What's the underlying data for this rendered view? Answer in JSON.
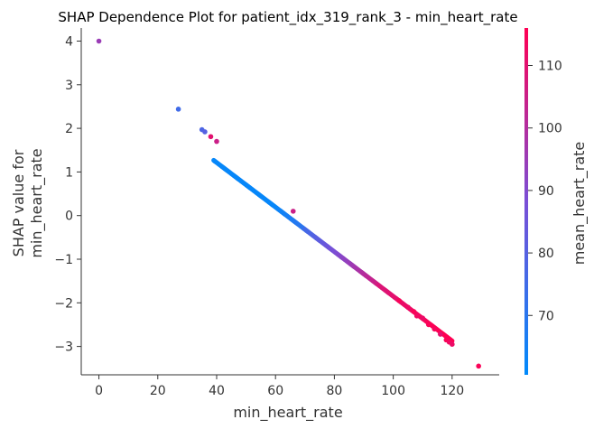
{
  "chart_data": {
    "type": "scatter",
    "title": "SHAP Dependence Plot for patient_idx_319_rank_3 - min_heart_rate",
    "xlabel": "min_heart_rate",
    "ylabel_line1": "SHAP value for",
    "ylabel_line2": "min_heart_rate",
    "xlim": [
      -6,
      136
    ],
    "ylim": [
      -3.65,
      4.3
    ],
    "xticks": [
      0,
      20,
      40,
      60,
      80,
      100,
      120
    ],
    "yticks": [
      -3,
      -2,
      -1,
      0,
      1,
      2,
      3,
      4
    ],
    "grid": false,
    "colorbar": {
      "label": "mean_heart_rate",
      "range": [
        60.5,
        116
      ],
      "ticks": [
        70,
        80,
        90,
        100,
        110
      ],
      "colors": [
        "#008afb",
        "#7a4fd6",
        "#ff0053"
      ]
    },
    "trend": {
      "slope": -0.0511,
      "intercept": 3.26,
      "x_min": 39,
      "x_max": 120
    },
    "points": [
      {
        "x": 0,
        "y": 4.0,
        "c": 95
      },
      {
        "x": 27,
        "y": 2.44,
        "c": 75
      },
      {
        "x": 35,
        "y": 1.97,
        "c": 78
      },
      {
        "x": 36,
        "y": 1.92,
        "c": 80
      },
      {
        "x": 38,
        "y": 1.81,
        "c": 110
      },
      {
        "x": 40,
        "y": 1.7,
        "c": 105
      },
      {
        "x": 66,
        "y": 0.1,
        "c": 105
      },
      {
        "x": 102,
        "y": -1.95,
        "c": 115
      },
      {
        "x": 105,
        "y": -2.1,
        "c": 112
      },
      {
        "x": 107,
        "y": -2.2,
        "c": 115
      },
      {
        "x": 108,
        "y": -2.3,
        "c": 113
      },
      {
        "x": 110,
        "y": -2.35,
        "c": 112
      },
      {
        "x": 112,
        "y": -2.5,
        "c": 115
      },
      {
        "x": 114,
        "y": -2.6,
        "c": 114
      },
      {
        "x": 116,
        "y": -2.72,
        "c": 110
      },
      {
        "x": 118,
        "y": -2.85,
        "c": 115
      },
      {
        "x": 119,
        "y": -2.9,
        "c": 113
      },
      {
        "x": 120,
        "y": -2.95,
        "c": 112
      },
      {
        "x": 129,
        "y": -3.45,
        "c": 115
      }
    ]
  }
}
